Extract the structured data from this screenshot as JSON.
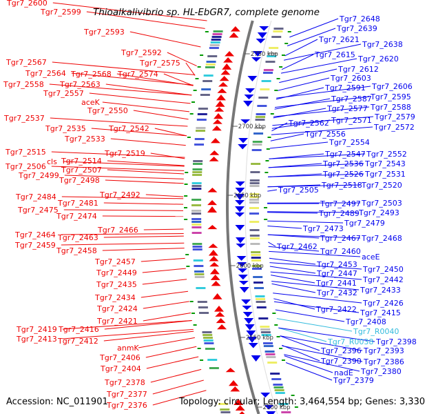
{
  "title": "Thioalkalivibrio sp. HL-EbGR7, complete genome",
  "accession": "Accession: NC_011901",
  "topology": "Topology: circular; Length: 3,464,554 bp; Genes: 3,330",
  "colors": {
    "forward": "#ee0000",
    "reverse": "#0000ee",
    "rna": "#33bbdd",
    "backbone": "#777777",
    "tick": "#009900"
  },
  "kbp_markers": [
    "2750 kbp",
    "2700 kbp",
    "2650 kbp",
    "2600 kbp",
    "2550 kbp",
    "2500 kbp"
  ],
  "left_labels": [
    "Tgr7_2600",
    "Tgr7_2599",
    "Tgr7_2593",
    "Tgr7_2592",
    "Tgr7_2575",
    "Tgr7_2567",
    "Tgr7_2574",
    "Tgr7_2564",
    "Tgr7_2568",
    "Tgr7_2558",
    "Tgr7_2563",
    "Tgr7_2557",
    "aceK",
    "Tgr7_2550",
    "Tgr7_2537",
    "Tgr7_2542",
    "Tgr7_2535",
    "Tgr7_2533",
    "Tgr7_2515",
    "Tgr7_2519",
    "cls",
    "Tgr7_2514",
    "Tgr7_2506",
    "Tgr7_2507",
    "Tgr7_2499",
    "Tgr7_2498",
    "Tgr7_2492",
    "Tgr7_2484",
    "Tgr7_2481",
    "Tgr7_2475",
    "Tgr7_2474",
    "Tgr7_2466",
    "Tgr7_2464",
    "Tgr7_2463",
    "Tgr7_2459",
    "Tgr7_2458",
    "Tgr7_2457",
    "Tgr7_2449",
    "Tgr7_2435",
    "Tgr7_2434",
    "Tgr7_2424",
    "Tgr7_2421",
    "Tgr7_2419",
    "Tgr7_2416",
    "Tgr7_2413",
    "Tgr7_2412",
    "anmK",
    "Tgr7_2406",
    "Tgr7_2404",
    "Tgr7_2378",
    "Tgr7_2377",
    "Tgr7_2376"
  ],
  "right_labels": [
    "Tgr7_2648",
    "Tgr7_2639",
    "Tgr7_2621",
    "Tgr7_2638",
    "Tgr7_2615",
    "Tgr7_2620",
    "Tgr7_2612",
    "Tgr7_2603",
    "Tgr7_2591",
    "Tgr7_2606",
    "Tgr7_2587",
    "Tgr7_2595",
    "Tgr7_2577",
    "Tgr7_2588",
    "Tgr7_2579",
    "Tgr7_2571",
    "Tgr7_2572",
    "Tgr7_2562",
    "Tgr7_2556",
    "Tgr7_2554",
    "Tgr7_2547",
    "Tgr7_2552",
    "Tgr7_2536",
    "Tgr7_2543",
    "Tgr7_2526",
    "Tgr7_2531",
    "Tgr7_2518",
    "Tgr7_2520",
    "Tgr7_2505",
    "Tgr7_2497",
    "Tgr7_2503",
    "Tgr7_2489",
    "Tgr7_2493",
    "Tgr7_2479",
    "Tgr7_2473",
    "Tgr7_2467",
    "Tgr7_2468",
    "Tgr7_2462",
    "Tgr7_2460",
    "aceE",
    "Tgr7_2453",
    "Tgr7_2447",
    "Tgr7_2450",
    "Tgr7_2441",
    "Tgr7_2442",
    "Tgr7_2432",
    "Tgr7_2433",
    "Tgr7_2426",
    "Tgr7_2422",
    "Tgr7_2415",
    "Tgr7_2408",
    "Tgr7_R0040",
    "Tgr7_R0038",
    "Tgr7_2398",
    "Tgr7_2396",
    "Tgr7_2393",
    "Tgr7_2390",
    "Tgr7_2386",
    "nadE",
    "Tgr7_2380",
    "Tgr7_2379"
  ],
  "rna_labels": [
    "Tgr7_R0040",
    "Tgr7_R0038"
  ]
}
